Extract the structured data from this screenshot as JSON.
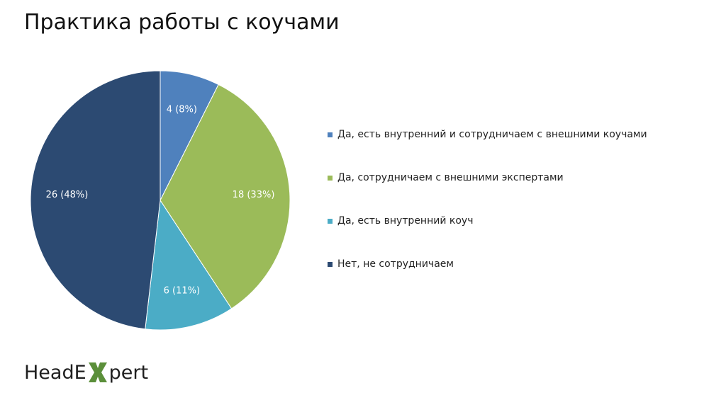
{
  "page": {
    "title": "Практика работы с коучами"
  },
  "logo": {
    "part1": "HeadE",
    "part2": "pert",
    "x_mark_color": "#5b8f3a"
  },
  "chart_data": {
    "type": "pie",
    "title": "Практика работы с коучами",
    "start_angle": "12 o'clock",
    "direction": "clockwise",
    "legend_position": "right",
    "slices": [
      {
        "name": "Да, есть внутренний и сотрудничаем с внешними коучами",
        "value": 4,
        "percent": 8,
        "label": "4 (8%)",
        "color": "#4f81bd"
      },
      {
        "name": "Да, сотрудничаем с внешними экспертами",
        "value": 18,
        "percent": 33,
        "label": "18 (33%)",
        "color": "#9bbb59"
      },
      {
        "name": "Да, есть внутренний коуч",
        "value": 6,
        "percent": 11,
        "label": "6 (11%)",
        "color": "#4bacc6"
      },
      {
        "name": "Нет, не сотрудничаем",
        "value": 26,
        "percent": 48,
        "label": "26 (48%)",
        "color": "#2c4a72"
      }
    ]
  }
}
